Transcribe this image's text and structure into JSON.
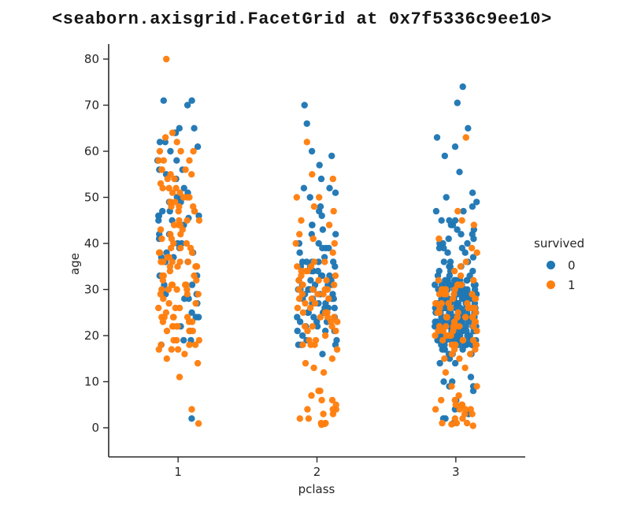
{
  "title": "<seaborn.axisgrid.FacetGrid at 0x7f5336c9ee10>",
  "chart_data": {
    "type": "scatter",
    "subtype": "strip",
    "title": "",
    "xlabel": "pclass",
    "ylabel": "age",
    "categories": [
      "1",
      "2",
      "3"
    ],
    "y_ticks": [
      0,
      10,
      20,
      30,
      40,
      50,
      60,
      70,
      80
    ],
    "ylim": [
      -6.7,
      82.7
    ],
    "grid": false,
    "legend": {
      "title": "survived",
      "position": "right",
      "entries": [
        {
          "label": "0",
          "color": "#1f77b4"
        },
        {
          "label": "1",
          "color": "#ff7f0e"
        }
      ]
    },
    "series": [
      {
        "name": "survived=0",
        "label": "0",
        "color": "#1f77b4",
        "points_by_class": [
          [
            2,
            18,
            19,
            19,
            21,
            22,
            24,
            24,
            25,
            27,
            28,
            28,
            29,
            29,
            30,
            31,
            31,
            33,
            33,
            36,
            36,
            37,
            37,
            38,
            38,
            39,
            40,
            40,
            41,
            42,
            42,
            44,
            45,
            45,
            45.5,
            46,
            46,
            46,
            47,
            47,
            47,
            49,
            49,
            50,
            50,
            51,
            52,
            54,
            55,
            56,
            56,
            58,
            58,
            60,
            61,
            62,
            62,
            64,
            64,
            65,
            65,
            70,
            71,
            71
          ],
          [
            16,
            18,
            18,
            19,
            19,
            20,
            21,
            21,
            22,
            23,
            23,
            24,
            24,
            25,
            25,
            25,
            26,
            26,
            27,
            27,
            28,
            28,
            28,
            29,
            29,
            30,
            30,
            30,
            30,
            31,
            31,
            31,
            32,
            32,
            33,
            33,
            34,
            34,
            34,
            35,
            35,
            36,
            36,
            36,
            36,
            37,
            38,
            39,
            39,
            40,
            40,
            42,
            42,
            43,
            44,
            44,
            46,
            47,
            48,
            50,
            51,
            52,
            52,
            54,
            57,
            59,
            60,
            66,
            70,
            23,
            26,
            28,
            31,
            34,
            25,
            27,
            30,
            33,
            21,
            24,
            29,
            32,
            35,
            18,
            22,
            26,
            30,
            36,
            39,
            28
          ],
          [
            1,
            2,
            2,
            3,
            4,
            6,
            8,
            9,
            9,
            10,
            10,
            11,
            14,
            14,
            15,
            16,
            16,
            16,
            17,
            17,
            17,
            17,
            18,
            18,
            18,
            18,
            18,
            18,
            19,
            19,
            19,
            19,
            19,
            20,
            20,
            20,
            20,
            20,
            21,
            21,
            21,
            21,
            21,
            22,
            22,
            22,
            22,
            22,
            22,
            23,
            23,
            23,
            23,
            24,
            24,
            24,
            24,
            24,
            24,
            25,
            25,
            25,
            25,
            25,
            26,
            26,
            26,
            26,
            27,
            27,
            27,
            27,
            28,
            28,
            28,
            28,
            28,
            28,
            29,
            29,
            29,
            29,
            29,
            30,
            30,
            30,
            30,
            30,
            31,
            31,
            31,
            32,
            32,
            32,
            32,
            33,
            33,
            33,
            34,
            34,
            34,
            35,
            35,
            35,
            36,
            36,
            36,
            37,
            38,
            38,
            39,
            39,
            39,
            40,
            40,
            40,
            41,
            41,
            42,
            42,
            43,
            43,
            44,
            44,
            45,
            45,
            45,
            47,
            47,
            48,
            49,
            50,
            51,
            55.5,
            59,
            61,
            63,
            65,
            70.5,
            74,
            18,
            19,
            20,
            21,
            22,
            23,
            24,
            25,
            26,
            27,
            28,
            29,
            30,
            31,
            32,
            18,
            19,
            20,
            21,
            22,
            23,
            24,
            25,
            26,
            27,
            28,
            29,
            30,
            31,
            32,
            18,
            19,
            20,
            21,
            22,
            23,
            24,
            25,
            26,
            27,
            28,
            29,
            30,
            31,
            32,
            18,
            19,
            20,
            21,
            22,
            23,
            24,
            25,
            26,
            27,
            28,
            29,
            30,
            31,
            32,
            18,
            19,
            20,
            21,
            22,
            23,
            24,
            25,
            26,
            27,
            28,
            29,
            30,
            31,
            32,
            18,
            19,
            20,
            21,
            22,
            23,
            24,
            25,
            26,
            27,
            28,
            29,
            30,
            31,
            32,
            18,
            19,
            20,
            21,
            22,
            23,
            24,
            25,
            26,
            27,
            28,
            29,
            30,
            31,
            32,
            20,
            22,
            25,
            28,
            30
          ]
        ]
      },
      {
        "name": "survived=1",
        "label": "1",
        "color": "#ff7f0e",
        "points_by_class": [
          [
            0.92,
            4,
            11,
            14,
            15,
            16,
            17,
            17,
            17,
            18,
            18,
            18,
            19,
            19,
            19,
            21,
            21,
            21,
            22,
            22,
            22,
            23,
            23,
            23,
            24,
            24,
            24,
            24,
            25,
            26,
            26,
            27,
            27,
            28,
            29,
            29,
            30,
            30,
            30,
            31,
            31,
            31,
            32,
            32,
            33,
            33,
            34,
            35,
            35,
            35,
            35,
            36,
            36,
            36,
            36,
            37,
            38,
            38,
            38,
            39,
            39,
            39,
            40,
            40,
            41,
            42,
            42,
            43,
            43,
            44,
            44,
            44,
            45,
            45,
            47,
            47,
            48,
            48,
            48,
            49,
            49,
            49,
            50,
            50,
            51,
            51,
            52,
            52,
            52,
            53,
            54,
            54,
            55,
            55,
            56,
            56,
            56,
            58,
            58,
            58,
            60,
            60,
            60,
            62,
            63,
            64,
            80,
            36,
            30,
            24,
            35,
            45,
            50,
            33,
            26,
            22,
            41,
            37,
            29,
            31
          ],
          [
            0.67,
            0.83,
            1,
            1,
            2,
            2,
            3,
            3,
            4,
            4,
            4,
            5,
            6,
            7,
            8,
            8,
            12,
            13,
            14,
            15,
            17,
            18,
            18,
            19,
            20,
            21,
            22,
            22,
            23,
            24,
            24,
            25,
            25,
            26,
            27,
            28,
            28,
            29,
            29,
            30,
            30,
            31,
            32,
            32,
            33,
            34,
            34,
            35,
            36,
            36,
            40,
            40,
            42,
            45,
            48,
            50,
            54,
            55,
            62,
            19,
            24,
            27,
            30,
            33,
            21,
            26,
            31,
            23,
            28,
            34,
            25,
            29,
            32,
            18,
            22,
            30,
            35,
            38,
            41,
            44,
            47,
            50,
            6
          ],
          [
            0.42,
            0.75,
            1,
            1,
            2,
            3,
            4,
            4,
            4,
            5,
            5,
            5,
            6,
            7,
            9,
            9,
            12,
            13,
            15,
            15,
            16,
            16,
            17,
            17,
            18,
            18,
            18,
            19,
            19,
            20,
            20,
            21,
            21,
            22,
            22,
            22,
            23,
            23,
            24,
            24,
            24,
            25,
            25,
            26,
            26,
            26,
            27,
            27,
            28,
            29,
            29,
            30,
            30,
            31,
            31,
            32,
            32,
            33,
            34,
            35,
            36,
            38,
            39,
            41,
            44,
            45,
            47,
            63,
            18,
            19,
            20,
            21,
            22,
            23,
            24,
            25,
            26,
            27,
            28,
            29,
            30,
            18,
            19,
            20,
            21,
            22,
            23,
            24,
            25,
            26,
            27,
            28,
            29,
            30,
            1,
            2,
            3,
            4,
            6,
            22,
            24,
            26,
            27,
            29,
            31
          ]
        ]
      }
    ]
  }
}
